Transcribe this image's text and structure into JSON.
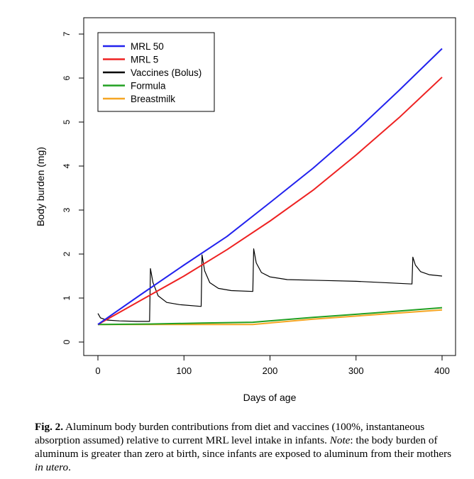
{
  "chart_data": {
    "type": "line",
    "xlabel": "Days of age",
    "ylabel": "Body burden (mg)",
    "xlim": [
      0,
      400
    ],
    "ylim": [
      0,
      7
    ],
    "xticks": [
      0,
      100,
      200,
      300,
      400
    ],
    "yticks": [
      0,
      1,
      2,
      3,
      4,
      5,
      6,
      7
    ],
    "grid": false,
    "legend_position": "top-left",
    "series": [
      {
        "name": "MRL 50",
        "color": "#2222ee",
        "x": [
          0,
          50,
          100,
          150,
          200,
          250,
          300,
          350,
          400
        ],
        "y": [
          0.4,
          1.08,
          1.75,
          2.4,
          3.17,
          3.95,
          4.8,
          5.72,
          6.67
        ]
      },
      {
        "name": "MRL 5",
        "color": "#ee2222",
        "x": [
          0,
          50,
          100,
          150,
          200,
          250,
          300,
          350,
          400
        ],
        "y": [
          0.4,
          0.95,
          1.5,
          2.1,
          2.75,
          3.45,
          4.25,
          5.1,
          6.02
        ]
      },
      {
        "name": "Vaccines (Bolus)",
        "color": "#000000",
        "x": [
          0,
          3,
          10,
          25,
          45,
          60,
          61,
          64,
          70,
          80,
          95,
          120,
          121,
          124,
          130,
          140,
          155,
          180,
          181,
          184,
          190,
          200,
          220,
          260,
          300,
          365,
          366,
          369,
          375,
          385,
          400
        ],
        "y": [
          0.65,
          0.55,
          0.5,
          0.48,
          0.47,
          0.47,
          1.67,
          1.35,
          1.05,
          0.9,
          0.85,
          0.81,
          1.98,
          1.62,
          1.35,
          1.22,
          1.17,
          1.15,
          2.12,
          1.8,
          1.58,
          1.48,
          1.42,
          1.4,
          1.38,
          1.32,
          1.93,
          1.75,
          1.6,
          1.53,
          1.5
        ]
      },
      {
        "name": "Formula",
        "color": "#22a022",
        "x": [
          0,
          60,
          120,
          180,
          250,
          320,
          400
        ],
        "y": [
          0.4,
          0.41,
          0.43,
          0.45,
          0.56,
          0.66,
          0.78
        ]
      },
      {
        "name": "Breastmilk",
        "color": "#f5a623",
        "x": [
          0,
          60,
          120,
          180,
          250,
          320,
          400
        ],
        "y": [
          0.4,
          0.4,
          0.4,
          0.4,
          0.52,
          0.62,
          0.73
        ]
      }
    ]
  },
  "caption": {
    "label": "Fig. 2.",
    "text": "Aluminum body burden contributions from diet and vaccines (100%, instantaneous absorption assumed) relative to current MRL level intake in infants.",
    "note_label": "Note",
    "note_text": ": the body burden of aluminum is greater than zero at birth, since infants are exposed to aluminum from their mothers",
    "in_utero": "in utero",
    "end": "."
  }
}
